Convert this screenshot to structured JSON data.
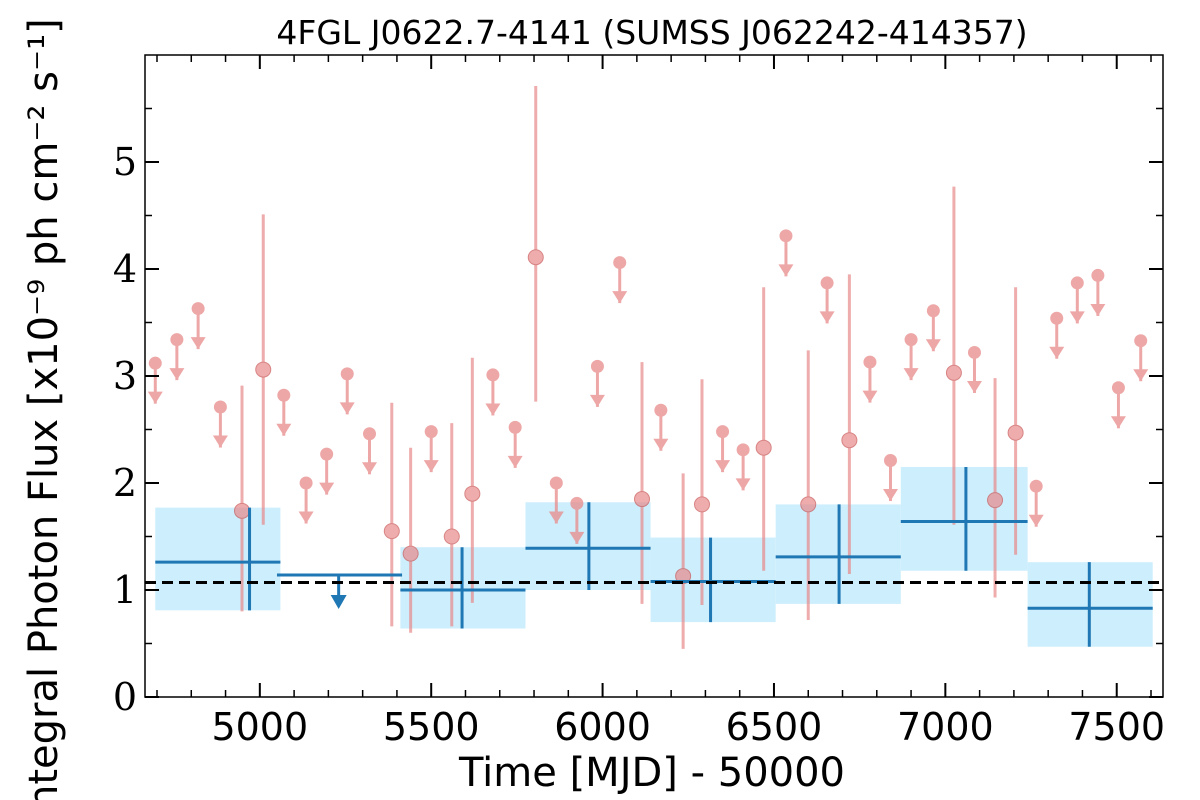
{
  "chart_data": {
    "type": "scatter",
    "title": "4FGL J0622.7-4141 (SUMSS J062242-414357)",
    "xlabel": "Time [MJD] - 50000",
    "ylabel": "Integral Photon Flux [x10⁻⁹ ph cm⁻² s⁻¹]",
    "xlim": [
      4665,
      7635
    ],
    "ylim": [
      0,
      6.0
    ],
    "xticks": [
      5000,
      5500,
      6000,
      6500,
      7000,
      7500
    ],
    "yticks": [
      0,
      1,
      2,
      3,
      4,
      5
    ],
    "grid": false,
    "reference_line": {
      "y": 1.07,
      "style": "dashed",
      "color": "#000000"
    },
    "colors": {
      "short_bins": "#e88a8a",
      "long_bins": "#1f77b4",
      "long_bins_band": "#cdeefc",
      "reference": "#000000"
    },
    "series": [
      {
        "bin": "short",
        "detections": [
          {
            "x": 4948,
            "y": 1.74,
            "ylo": 0.8,
            "yhi": 2.91
          },
          {
            "x": 5010,
            "y": 3.06,
            "ylo": 1.61,
            "yhi": 4.51
          },
          {
            "x": 5385,
            "y": 1.55,
            "ylo": 0.66,
            "yhi": 2.75
          },
          {
            "x": 5440,
            "y": 1.34,
            "ylo": 0.6,
            "yhi": 2.33
          },
          {
            "x": 5560,
            "y": 1.5,
            "ylo": 0.66,
            "yhi": 2.56
          },
          {
            "x": 5620,
            "y": 1.9,
            "ylo": 0.88,
            "yhi": 3.17
          },
          {
            "x": 5805,
            "y": 4.11,
            "ylo": 2.76,
            "yhi": 5.71
          },
          {
            "x": 6115,
            "y": 1.85,
            "ylo": 0.87,
            "yhi": 3.13
          },
          {
            "x": 6235,
            "y": 1.13,
            "ylo": 0.45,
            "yhi": 2.09
          },
          {
            "x": 6290,
            "y": 1.8,
            "ylo": 0.86,
            "yhi": 2.97
          },
          {
            "x": 6470,
            "y": 2.33,
            "ylo": 1.18,
            "yhi": 3.83
          },
          {
            "x": 6600,
            "y": 1.8,
            "ylo": 0.72,
            "yhi": 3.24
          },
          {
            "x": 6720,
            "y": 2.4,
            "ylo": 1.15,
            "yhi": 3.95
          },
          {
            "x": 7025,
            "y": 3.03,
            "ylo": 1.61,
            "yhi": 4.77
          },
          {
            "x": 7145,
            "y": 1.84,
            "ylo": 0.93,
            "yhi": 2.98
          },
          {
            "x": 7205,
            "y": 2.47,
            "ylo": 1.33,
            "yhi": 3.83
          }
        ],
        "upper_limits": [
          {
            "x": 4695,
            "y": 3.12
          },
          {
            "x": 4758,
            "y": 3.34
          },
          {
            "x": 4820,
            "y": 3.63
          },
          {
            "x": 4885,
            "y": 2.71
          },
          {
            "x": 5070,
            "y": 2.82
          },
          {
            "x": 5135,
            "y": 2.0
          },
          {
            "x": 5195,
            "y": 2.27
          },
          {
            "x": 5255,
            "y": 3.02
          },
          {
            "x": 5320,
            "y": 2.46
          },
          {
            "x": 5500,
            "y": 2.48
          },
          {
            "x": 5680,
            "y": 3.01
          },
          {
            "x": 5745,
            "y": 2.52
          },
          {
            "x": 5865,
            "y": 2.0
          },
          {
            "x": 5925,
            "y": 1.81
          },
          {
            "x": 5985,
            "y": 3.09
          },
          {
            "x": 6050,
            "y": 4.06
          },
          {
            "x": 6170,
            "y": 2.68
          },
          {
            "x": 6350,
            "y": 2.48
          },
          {
            "x": 6410,
            "y": 2.31
          },
          {
            "x": 6535,
            "y": 4.31
          },
          {
            "x": 6655,
            "y": 3.87
          },
          {
            "x": 6780,
            "y": 3.13
          },
          {
            "x": 6840,
            "y": 2.21
          },
          {
            "x": 6900,
            "y": 3.34
          },
          {
            "x": 6965,
            "y": 3.61
          },
          {
            "x": 7085,
            "y": 3.22
          },
          {
            "x": 7265,
            "y": 1.97
          },
          {
            "x": 7325,
            "y": 3.54
          },
          {
            "x": 7385,
            "y": 3.87
          },
          {
            "x": 7445,
            "y": 3.94
          },
          {
            "x": 7505,
            "y": 2.89
          },
          {
            "x": 7570,
            "y": 3.33
          }
        ]
      },
      {
        "bin": "long",
        "detections": [
          {
            "x": 4970,
            "xlo": 4695,
            "xhi": 5060,
            "y": 1.26,
            "ylo": 0.81,
            "yhi": 1.77
          },
          {
            "x": 5590,
            "xlo": 5410,
            "xhi": 5775,
            "y": 1.0,
            "ylo": 0.64,
            "yhi": 1.4
          },
          {
            "x": 5960,
            "xlo": 5775,
            "xhi": 6140,
            "y": 1.39,
            "ylo": 1.0,
            "yhi": 1.82
          },
          {
            "x": 6315,
            "xlo": 6140,
            "xhi": 6505,
            "y": 1.08,
            "ylo": 0.7,
            "yhi": 1.49
          },
          {
            "x": 6690,
            "xlo": 6505,
            "xhi": 6870,
            "y": 1.31,
            "ylo": 0.87,
            "yhi": 1.8
          },
          {
            "x": 7060,
            "xlo": 6870,
            "xhi": 7240,
            "y": 1.64,
            "ylo": 1.18,
            "yhi": 2.15
          },
          {
            "x": 7420,
            "xlo": 7240,
            "xhi": 7605,
            "y": 0.83,
            "ylo": 0.47,
            "yhi": 1.26
          }
        ],
        "upper_limits": [
          {
            "x": 5230,
            "xlo": 5050,
            "xhi": 5415,
            "y": 1.14
          }
        ]
      }
    ]
  }
}
